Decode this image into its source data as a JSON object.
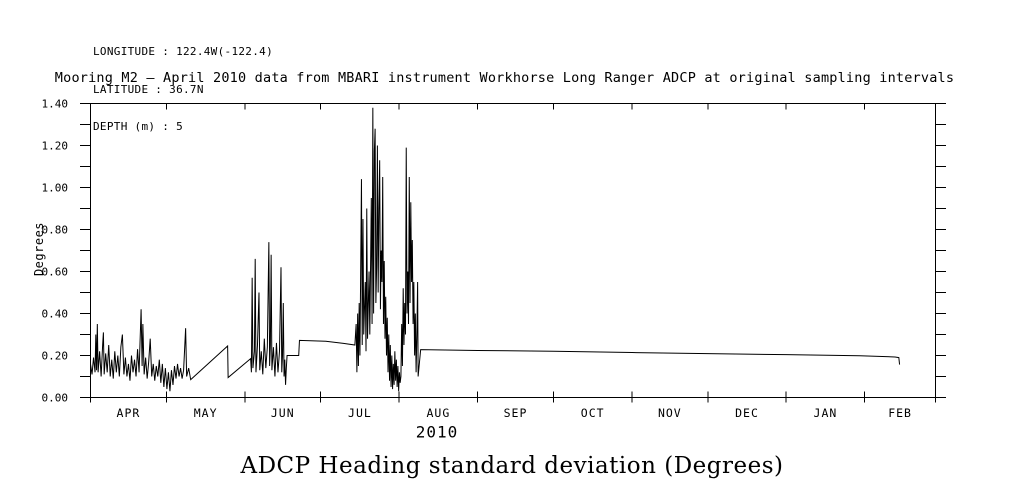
{
  "page": {
    "background": "#ffffff",
    "foreground": "#000000"
  },
  "chart_data": {
    "type": "line",
    "info_lines": [
      "LONGITUDE : 122.4W(-122.4)",
      "LATITUDE : 36.7N",
      "DEPTH (m) : 5"
    ],
    "title": "Mooring M2 – April 2010 data from MBARI instrument Workhorse Long Ranger ADCP at original sampling intervals",
    "caption": "ADCP Heading standard deviation (Degrees)",
    "ylabel": "Degrees",
    "grid": false,
    "legend": null,
    "x_axis": {
      "year_label": "2010",
      "units": "days since 2010-04-01",
      "domain_days": [
        0,
        334
      ],
      "month_labels": [
        "APR",
        "MAY",
        "JUN",
        "JUL",
        "AUG",
        "SEP",
        "OCT",
        "NOV",
        "DEC",
        "JAN",
        "FEB"
      ],
      "month_boundaries_days": [
        0,
        30,
        61,
        91,
        122,
        153,
        183,
        214,
        244,
        275,
        306,
        334
      ],
      "month_label_centers_days": [
        15,
        45.5,
        76,
        106.5,
        137.5,
        168,
        198.5,
        229,
        259.5,
        290.5,
        320
      ]
    },
    "y_axis": {
      "range": [
        0,
        1.4
      ],
      "ticks": [
        0.0,
        0.2,
        0.4,
        0.6,
        0.8,
        1.0,
        1.2,
        1.4
      ],
      "tick_labels": [
        "0.00",
        "0.20",
        "0.40",
        "0.60",
        "0.80",
        "1.00",
        "1.20",
        "1.40"
      ],
      "minor_ticks": [
        0.1,
        0.3,
        0.5,
        0.7,
        0.9,
        1.1,
        1.3
      ]
    },
    "series": [
      {
        "name": "ADCP heading standard deviation",
        "color": "#000000",
        "points": [
          [
            0,
            0.16
          ],
          [
            0.6,
            0.11
          ],
          [
            1.2,
            0.19
          ],
          [
            1.8,
            0.12
          ],
          [
            2.1,
            0.3
          ],
          [
            2.4,
            0.13
          ],
          [
            2.7,
            0.35
          ],
          [
            3.0,
            0.12
          ],
          [
            3.6,
            0.22
          ],
          [
            4.2,
            0.1
          ],
          [
            4.8,
            0.25
          ],
          [
            5.1,
            0.31
          ],
          [
            5.4,
            0.11
          ],
          [
            6.0,
            0.21
          ],
          [
            6.6,
            0.12
          ],
          [
            7.2,
            0.25
          ],
          [
            7.8,
            0.1
          ],
          [
            8.4,
            0.18
          ],
          [
            9.0,
            0.09
          ],
          [
            9.6,
            0.22
          ],
          [
            10.2,
            0.12
          ],
          [
            10.8,
            0.2
          ],
          [
            11.4,
            0.1
          ],
          [
            12.0,
            0.24
          ],
          [
            12.6,
            0.3
          ],
          [
            13.2,
            0.11
          ],
          [
            13.8,
            0.19
          ],
          [
            14.4,
            0.1
          ],
          [
            15.0,
            0.16
          ],
          [
            15.6,
            0.08
          ],
          [
            16.2,
            0.2
          ],
          [
            16.8,
            0.12
          ],
          [
            17.4,
            0.18
          ],
          [
            18.0,
            0.1
          ],
          [
            18.6,
            0.23
          ],
          [
            19.2,
            0.12
          ],
          [
            20.0,
            0.42
          ],
          [
            20.4,
            0.15
          ],
          [
            20.7,
            0.35
          ],
          [
            21.2,
            0.11
          ],
          [
            21.8,
            0.19
          ],
          [
            22.4,
            0.09
          ],
          [
            23.0,
            0.17
          ],
          [
            23.6,
            0.28
          ],
          [
            24.2,
            0.1
          ],
          [
            24.8,
            0.16
          ],
          [
            25.4,
            0.08
          ],
          [
            26.0,
            0.15
          ],
          [
            26.6,
            0.1
          ],
          [
            27.2,
            0.18
          ],
          [
            27.8,
            0.07
          ],
          [
            28.4,
            0.16
          ],
          [
            29.0,
            0.05
          ],
          [
            29.6,
            0.14
          ],
          [
            30.2,
            0.04
          ],
          [
            30.8,
            0.12
          ],
          [
            31.4,
            0.03
          ],
          [
            32.0,
            0.13
          ],
          [
            32.6,
            0.06
          ],
          [
            33.2,
            0.15
          ],
          [
            33.8,
            0.09
          ],
          [
            34.4,
            0.16
          ],
          [
            35.0,
            0.1
          ],
          [
            35.6,
            0.14
          ],
          [
            36.2,
            0.09
          ],
          [
            36.8,
            0.13
          ],
          [
            37.6,
            0.33
          ],
          [
            38.0,
            0.1
          ],
          [
            38.8,
            0.14
          ],
          [
            39.6,
            0.085
          ],
          [
            54.2,
            0.245
          ],
          [
            54.4,
            0.095
          ],
          [
            63.3,
            0.185
          ],
          [
            63.6,
            0.12
          ],
          [
            63.9,
            0.57
          ],
          [
            64.2,
            0.14
          ],
          [
            64.8,
            0.22
          ],
          [
            65.1,
            0.66
          ],
          [
            65.4,
            0.12
          ],
          [
            66.0,
            0.25
          ],
          [
            66.6,
            0.5
          ],
          [
            66.9,
            0.13
          ],
          [
            67.5,
            0.22
          ],
          [
            68.1,
            0.11
          ],
          [
            68.7,
            0.28
          ],
          [
            69.3,
            0.14
          ],
          [
            69.9,
            0.24
          ],
          [
            70.5,
            0.74
          ],
          [
            70.8,
            0.15
          ],
          [
            71.1,
            0.25
          ],
          [
            71.4,
            0.68
          ],
          [
            71.7,
            0.13
          ],
          [
            72.3,
            0.24
          ],
          [
            72.9,
            0.1
          ],
          [
            73.5,
            0.26
          ],
          [
            74.1,
            0.12
          ],
          [
            74.7,
            0.22
          ],
          [
            75.3,
            0.62
          ],
          [
            75.6,
            0.12
          ],
          [
            75.9,
            0.2
          ],
          [
            76.2,
            0.45
          ],
          [
            76.5,
            0.1
          ],
          [
            76.8,
            0.18
          ],
          [
            77.1,
            0.06
          ],
          [
            77.4,
            0.14
          ],
          [
            77.7,
            0.2
          ],
          [
            82.3,
            0.2
          ],
          [
            82.6,
            0.272
          ],
          [
            93.0,
            0.268
          ],
          [
            100.0,
            0.258
          ],
          [
            104.5,
            0.25
          ],
          [
            105.0,
            0.35
          ],
          [
            105.3,
            0.12
          ],
          [
            105.6,
            0.4
          ],
          [
            105.9,
            0.15
          ],
          [
            106.2,
            0.45
          ],
          [
            106.5,
            0.2
          ],
          [
            107.1,
            1.04
          ],
          [
            107.4,
            0.25
          ],
          [
            107.7,
            0.85
          ],
          [
            108.0,
            0.3
          ],
          [
            108.6,
            0.55
          ],
          [
            108.9,
            0.22
          ],
          [
            109.2,
            0.9
          ],
          [
            109.5,
            0.28
          ],
          [
            110.1,
            0.6
          ],
          [
            110.4,
            0.3
          ],
          [
            111.0,
            0.95
          ],
          [
            111.3,
            0.35
          ],
          [
            111.6,
            1.38
          ],
          [
            111.9,
            0.4
          ],
          [
            112.2,
            1.17
          ],
          [
            112.5,
            1.28
          ],
          [
            112.8,
            0.45
          ],
          [
            113.1,
            0.62
          ],
          [
            113.4,
            1.2
          ],
          [
            113.7,
            0.5
          ],
          [
            114.0,
            0.9
          ],
          [
            114.3,
            1.13
          ],
          [
            114.6,
            0.42
          ],
          [
            114.9,
            0.7
          ],
          [
            115.2,
            0.55
          ],
          [
            115.5,
            1.05
          ],
          [
            115.8,
            0.35
          ],
          [
            116.1,
            0.65
          ],
          [
            116.4,
            0.28
          ],
          [
            116.7,
            0.48
          ],
          [
            117.0,
            0.2
          ],
          [
            117.3,
            0.38
          ],
          [
            117.6,
            0.12
          ],
          [
            117.9,
            0.3
          ],
          [
            118.2,
            0.08
          ],
          [
            118.5,
            0.25
          ],
          [
            118.8,
            0.05
          ],
          [
            119.1,
            0.2
          ],
          [
            119.4,
            0.04
          ],
          [
            119.7,
            0.16
          ],
          [
            120.0,
            0.06
          ],
          [
            120.3,
            0.22
          ],
          [
            120.6,
            0.08
          ],
          [
            120.9,
            0.18
          ],
          [
            121.2,
            0.05
          ],
          [
            121.5,
            0.15
          ],
          [
            121.8,
            0.03
          ],
          [
            122.1,
            0.12
          ],
          [
            122.4,
            0.07
          ],
          [
            122.7,
            0.1
          ],
          [
            123.0,
            0.35
          ],
          [
            123.3,
            0.15
          ],
          [
            123.6,
            0.52
          ],
          [
            123.9,
            0.25
          ],
          [
            124.2,
            0.45
          ],
          [
            124.5,
            0.3
          ],
          [
            124.8,
            1.19
          ],
          [
            125.1,
            0.4
          ],
          [
            125.4,
            0.6
          ],
          [
            125.7,
            0.35
          ],
          [
            126.0,
            1.05
          ],
          [
            126.3,
            0.45
          ],
          [
            126.6,
            0.93
          ],
          [
            126.9,
            0.55
          ],
          [
            127.2,
            0.75
          ],
          [
            127.5,
            0.35
          ],
          [
            127.8,
            0.55
          ],
          [
            128.1,
            0.2
          ],
          [
            128.4,
            0.4
          ],
          [
            128.7,
            0.12
          ],
          [
            129.0,
            0.3
          ],
          [
            129.3,
            0.55
          ],
          [
            129.5,
            0.1
          ],
          [
            130.5,
            0.228
          ],
          [
            153,
            0.224
          ],
          [
            183,
            0.22
          ],
          [
            214,
            0.214
          ],
          [
            244,
            0.209
          ],
          [
            275,
            0.204
          ],
          [
            304,
            0.199
          ],
          [
            318,
            0.193
          ],
          [
            319.5,
            0.19
          ],
          [
            319.8,
            0.157
          ]
        ]
      }
    ]
  }
}
